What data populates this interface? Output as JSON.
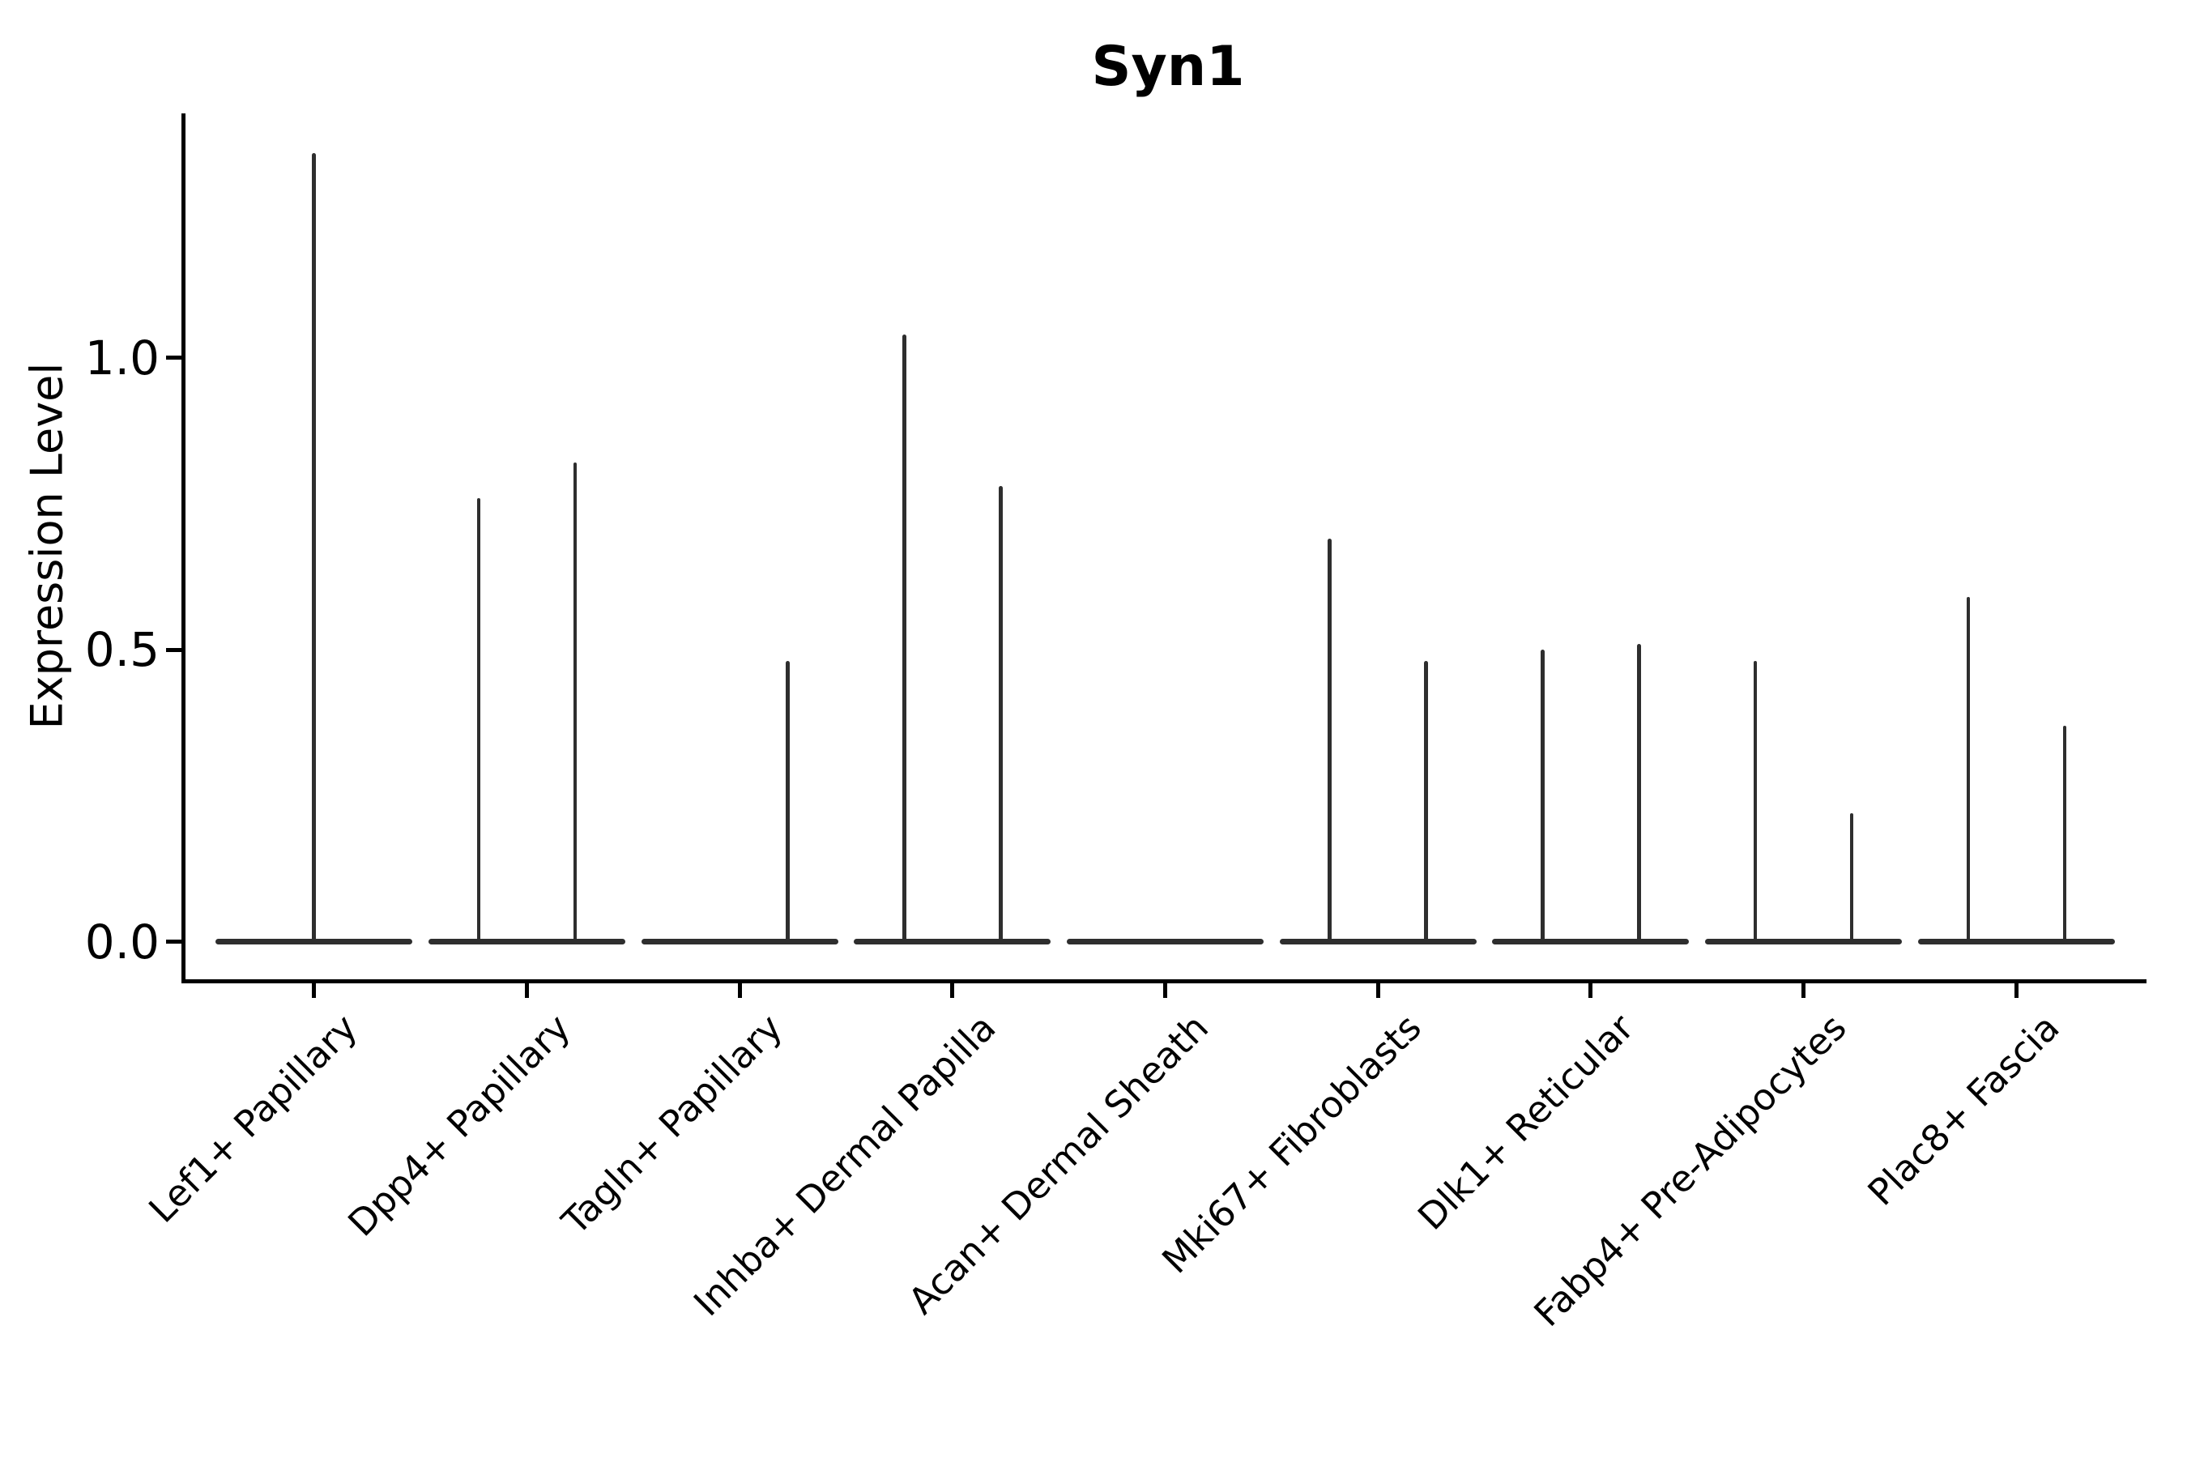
{
  "figure": {
    "title": "Syn1",
    "ylabel": "Expression Level"
  },
  "colors": {
    "background": "#ffffff",
    "axis_ink": "#000000",
    "violin_ink": "#2e2e2e"
  },
  "chart_data": {
    "type": "violin",
    "title": "Syn1",
    "xlabel": "",
    "ylabel": "Expression Level",
    "ylim": [
      -0.065,
      1.42
    ],
    "yticks": [
      0.0,
      0.5,
      1.0
    ],
    "ytick_labels": [
      "0.0",
      "0.5",
      "1.0"
    ],
    "grid": false,
    "legend": null,
    "x_tick_rotation_deg": 45,
    "categories": [
      "Lef1+ Papillary",
      "Dpp4+ Papillary",
      "Tagln+ Papillary",
      "Inhba+ Dermal Papilla",
      "Acan+ Dermal Sheath",
      "Mki67+ Fibroblasts",
      "Dlk1+ Reticular",
      "Fabp4+ Pre-Adipocytes",
      "Plac8+ Fascia"
    ],
    "violins": [
      {
        "category": "Lef1+ Papillary",
        "baseline_value": 0.0,
        "spikes": [
          {
            "offset": 0.0,
            "max": 1.35
          }
        ]
      },
      {
        "category": "Dpp4+ Papillary",
        "baseline_value": 0.0,
        "spikes": [
          {
            "offset": -0.2265,
            "max": 0.76
          },
          {
            "offset": 0.2265,
            "max": 0.82
          }
        ]
      },
      {
        "category": "Tagln+ Papillary",
        "baseline_value": 0.0,
        "spikes": [
          {
            "offset": 0.2265,
            "max": 0.48
          }
        ]
      },
      {
        "category": "Inhba+ Dermal Papilla",
        "baseline_value": 0.0,
        "spikes": [
          {
            "offset": -0.2265,
            "max": 1.04
          },
          {
            "offset": 0.2265,
            "max": 0.78
          }
        ]
      },
      {
        "category": "Acan+ Dermal Sheath",
        "baseline_value": 0.0,
        "spikes": []
      },
      {
        "category": "Mki67+ Fibroblasts",
        "baseline_value": 0.0,
        "spikes": [
          {
            "offset": -0.2265,
            "max": 0.69
          },
          {
            "offset": 0.2265,
            "max": 0.48
          }
        ]
      },
      {
        "category": "Dlk1+ Reticular",
        "baseline_value": 0.0,
        "spikes": [
          {
            "offset": -0.2265,
            "max": 0.5
          },
          {
            "offset": 0.2265,
            "max": 0.51
          }
        ]
      },
      {
        "category": "Fabp4+ Pre-Adipocytes",
        "baseline_value": 0.0,
        "spikes": [
          {
            "offset": -0.2265,
            "max": 0.48
          },
          {
            "offset": 0.2265,
            "max": 0.22
          }
        ]
      },
      {
        "category": "Plac8+ Fascia",
        "baseline_value": 0.0,
        "spikes": [
          {
            "offset": -0.2265,
            "max": 0.59
          },
          {
            "offset": 0.2265,
            "max": 0.37
          }
        ]
      }
    ]
  }
}
